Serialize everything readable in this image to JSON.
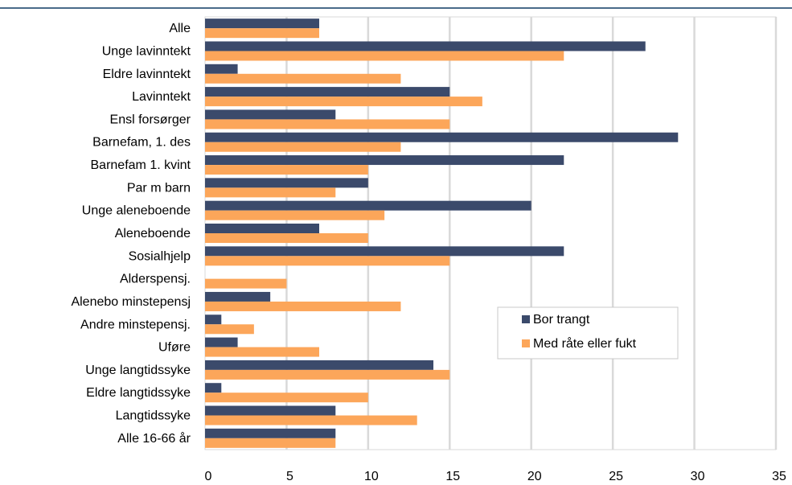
{
  "chart_data": {
    "type": "bar",
    "orientation": "horizontal",
    "categories": [
      "Alle",
      "Unge lavinntekt",
      "Eldre lavinntekt",
      "Lavinntekt",
      "Ensl forsørger",
      "Barnefam, 1. des",
      "Barnefam 1. kvint",
      "Par m barn",
      "Unge aleneboende",
      "Aleneboende",
      "Sosialhjelp",
      "Alderspensj.",
      "Alenebo minstepensj",
      "Andre minstepensj.",
      "Uføre",
      "Unge langtidssyke",
      "Eldre langtidssyke",
      "Langtidssyke",
      "Alle 16-66 år"
    ],
    "series": [
      {
        "name": "Bor trangt",
        "color": "#3b4a6b",
        "values": [
          7,
          27,
          2,
          15,
          8,
          29,
          22,
          10,
          20,
          7,
          22,
          0,
          4,
          1,
          2,
          14,
          1,
          8,
          8
        ]
      },
      {
        "name": "Med råte eller fukt",
        "color": "#fca65a",
        "values": [
          7,
          22,
          12,
          17,
          15,
          12,
          10,
          8,
          11,
          10,
          15,
          5,
          12,
          3,
          7,
          15,
          10,
          13,
          8
        ]
      }
    ],
    "xlim": [
      0,
      35
    ],
    "xticks": [
      "0",
      "5",
      "10",
      "15",
      "20",
      "25",
      "30",
      "35"
    ],
    "xtick_values": [
      0,
      5,
      10,
      15,
      20,
      25,
      30,
      35
    ],
    "grid": true,
    "legend_position": "bottom-right",
    "title": "",
    "xlabel": "",
    "ylabel": ""
  }
}
